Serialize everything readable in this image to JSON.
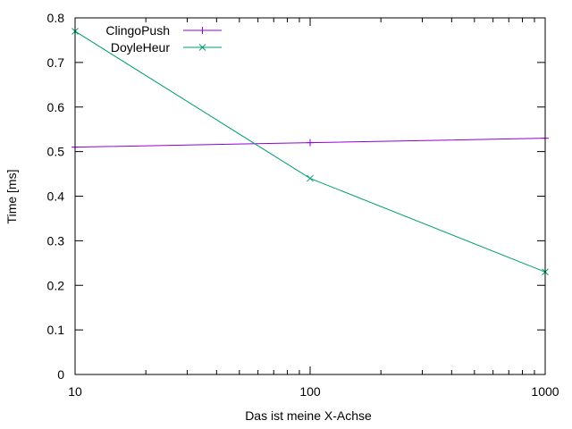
{
  "chart_data": {
    "type": "line",
    "title": "",
    "xlabel": "Das ist meine X-Achse",
    "ylabel": "Time [ms]",
    "x_scale": "log",
    "xlim": [
      10,
      1000
    ],
    "ylim": [
      0,
      0.8
    ],
    "x_ticks": [
      10,
      100,
      1000
    ],
    "x_tick_labels": [
      "10",
      "100",
      "1000"
    ],
    "y_ticks": [
      0,
      0.1,
      0.2,
      0.3,
      0.4,
      0.5,
      0.6,
      0.7,
      0.8
    ],
    "y_tick_labels": [
      "0",
      "0.1",
      "0.2",
      "0.3",
      "0.4",
      "0.5",
      "0.6",
      "0.7",
      "0.8"
    ],
    "grid": false,
    "legend_position": "top-left",
    "series": [
      {
        "name": "ClingoPush",
        "color": "#9400d3",
        "marker": "plus",
        "x": [
          10,
          100,
          1000
        ],
        "values": [
          0.51,
          0.52,
          0.53
        ]
      },
      {
        "name": "DoyleHeur",
        "color": "#009e73",
        "marker": "cross",
        "x": [
          10,
          100,
          1000
        ],
        "values": [
          0.77,
          0.44,
          0.23
        ]
      }
    ]
  }
}
